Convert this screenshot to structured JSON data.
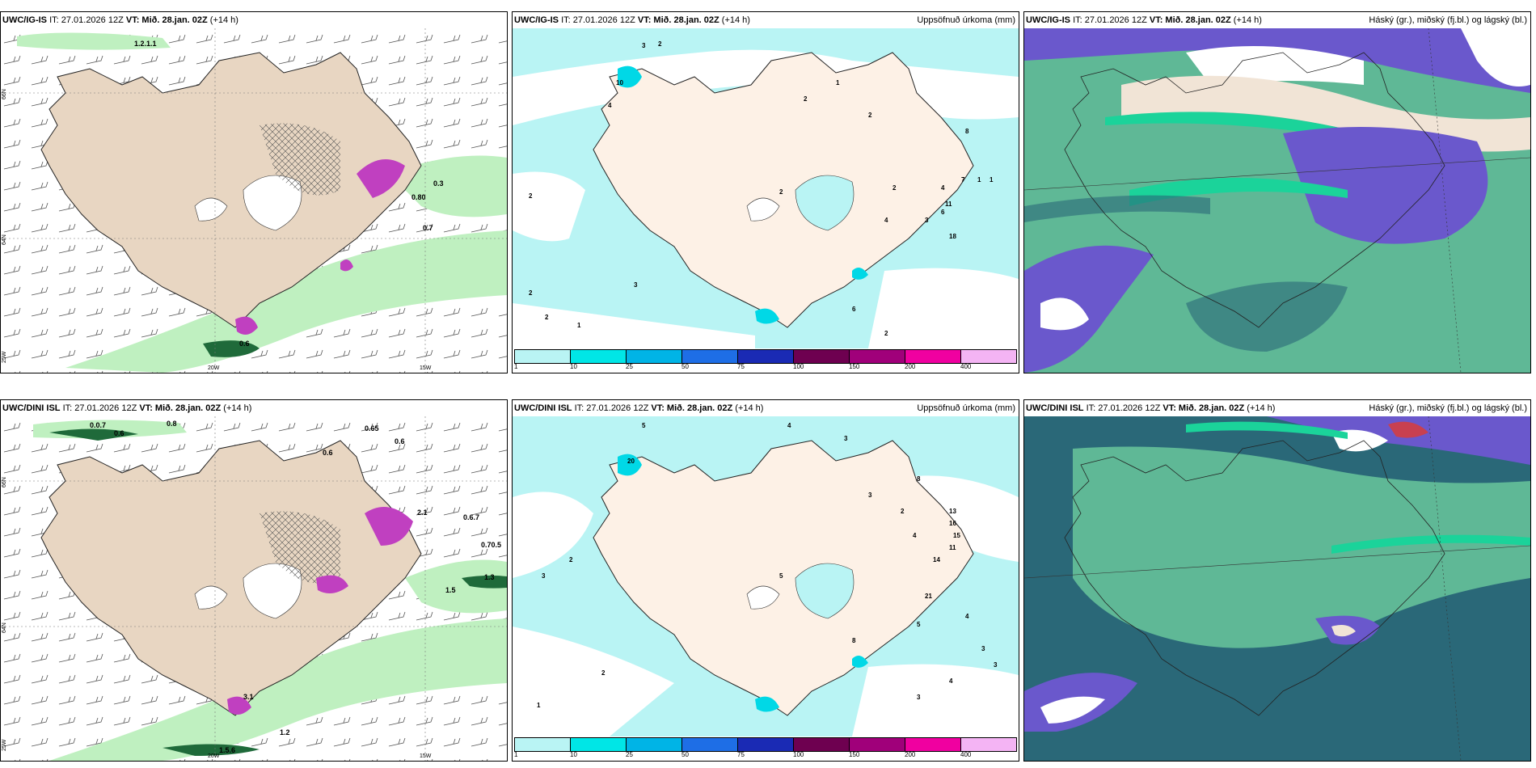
{
  "panels": [
    {
      "id": "ig-wind",
      "prefix": "UWC/IG-IS",
      "it": "IT: 27.01.2026 12Z",
      "vt_label": "VT:",
      "vt_value": "Mið. 28.jan. 02Z",
      "lead": "(+14 h)",
      "right_title": "",
      "labels": [
        "1.2.1.1",
        "0.6",
        "0.80",
        "0.3",
        "0.7"
      ],
      "coord_labels": [
        "66N",
        "64N",
        "25W",
        "20W",
        "15W"
      ]
    },
    {
      "id": "ig-precip",
      "prefix": "UWC/IG-IS",
      "it": "IT: 27.01.2026 12Z",
      "vt_label": "VT:",
      "vt_value": "Mið. 28.jan. 02Z",
      "lead": "(+14 h)",
      "right_title": "Uppsöfnuð úrkoma (mm)",
      "labels": [
        "3",
        "2",
        "4",
        "10",
        "2",
        "1",
        "2",
        "2",
        "3",
        "6",
        "4",
        "11",
        "18",
        "7",
        "8",
        "2",
        "4",
        "3",
        "6",
        "2",
        "2",
        "2",
        "2",
        "1",
        "1",
        "1"
      ]
    },
    {
      "id": "ig-cloud",
      "prefix": "UWC/IG-IS",
      "it": "IT: 27.01.2026 12Z",
      "vt_label": "VT:",
      "vt_value": "Mið. 28.jan. 02Z",
      "lead": "(+14 h)",
      "right_title": "Háský (gr.), miðský (fj.bl.) og lágský (bl.)"
    },
    {
      "id": "dini-wind",
      "prefix": "UWC/DINI ISL",
      "it": "IT: 27.01.2026 12Z",
      "vt_label": "VT:",
      "vt_value": "Mið. 28.jan. 02Z",
      "lead": "(+14 h)",
      "right_title": "",
      "labels": [
        "0.0.7",
        "0.6",
        "0.8",
        "0.65",
        "0.6",
        "0.6",
        "2.1",
        "0.6.7",
        "0.70.5",
        "1.3",
        "1.5",
        "3.1",
        "1.2",
        "1.5.6"
      ],
      "coord_labels": [
        "66N",
        "64N",
        "25W",
        "20W",
        "15W"
      ]
    },
    {
      "id": "dini-precip",
      "prefix": "UWC/DINI ISL",
      "it": "IT: 27.01.2026 12Z",
      "vt_label": "VT:",
      "vt_value": "Mið. 28.jan. 02Z",
      "lead": "(+14 h)",
      "right_title": "Uppsöfnuð úrkoma (mm)",
      "labels": [
        "5",
        "4",
        "3",
        "20",
        "8",
        "3",
        "2",
        "4",
        "13",
        "16",
        "15",
        "11",
        "14",
        "21",
        "8",
        "5",
        "4",
        "3",
        "3",
        "4",
        "2",
        "1",
        "3",
        "2",
        "3",
        "5"
      ]
    },
    {
      "id": "dini-cloud",
      "prefix": "UWC/DINI ISL",
      "it": "IT: 27.01.2026 12Z",
      "vt_label": "VT:",
      "vt_value": "Mið. 28.jan. 02Z",
      "lead": "(+14 h)",
      "right_title": "Háský (gr.), miðský (fj.bl.) og lágský (bl.)"
    }
  ],
  "colorbar": {
    "ticks": [
      "1",
      "10",
      "25",
      "50",
      "75",
      "100",
      "150",
      "200",
      "400"
    ],
    "colors": [
      "#b9f4f4",
      "#00e6e6",
      "#00b4e6",
      "#1e6ee6",
      "#1a2ab4",
      "#6e0050",
      "#a0007a",
      "#f000a0",
      "#f4b4f4"
    ]
  },
  "colors": {
    "land": "#f2e4d6",
    "land_tan": "#e8d6c2",
    "sea": "#ffffff",
    "precip_light": "#b9f4f4",
    "wind_green": "#bff0c0",
    "cloud_low": "#2a6878",
    "cloud_mid": "#5fb896",
    "cloud_high": "#6a58cc"
  }
}
